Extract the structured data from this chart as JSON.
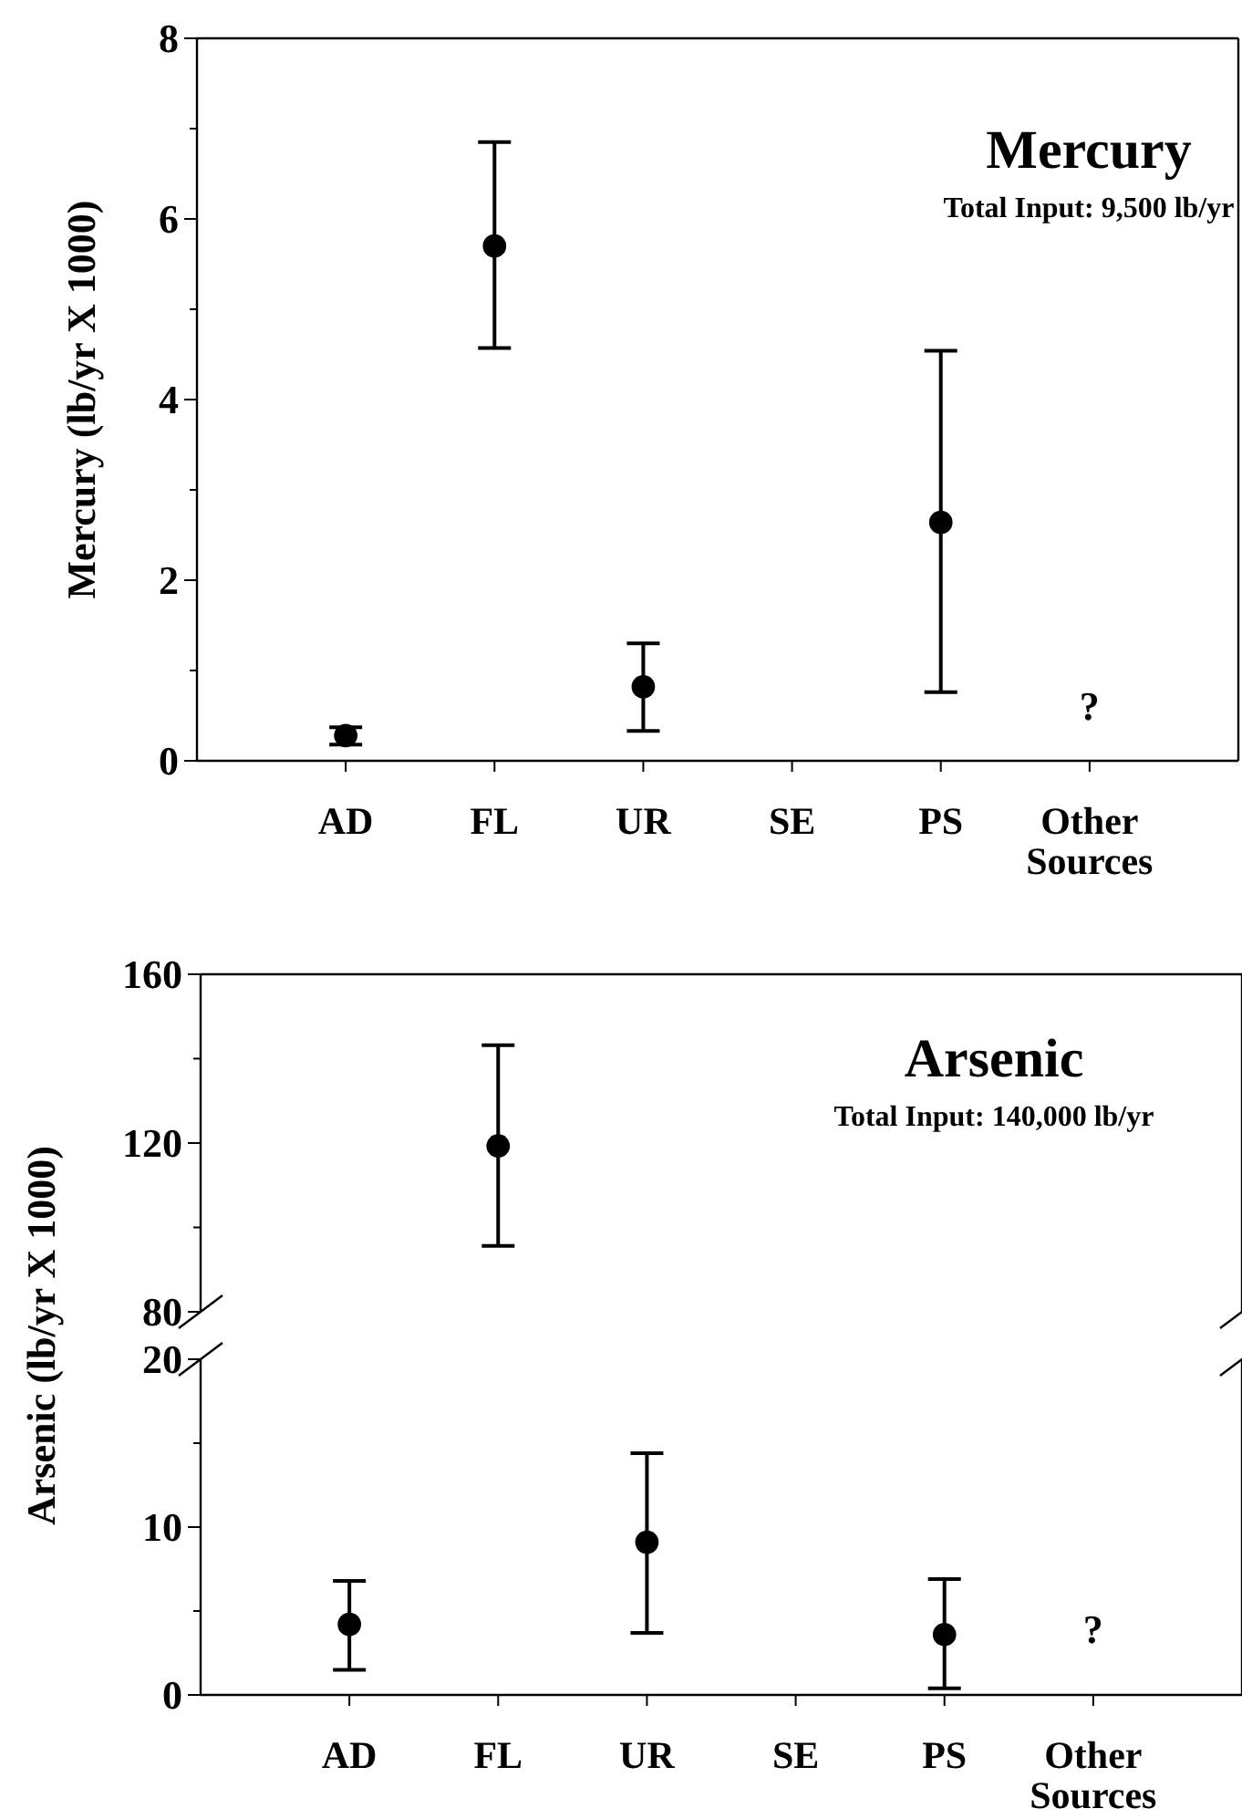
{
  "chart_data": [
    {
      "type": "scatter",
      "title": "Mercury",
      "subtitle": "Total Input: 9,500 lb/yr",
      "ylabel": "Mercury (lb/yr X 1000)",
      "categories": [
        "AD",
        "FL",
        "UR",
        "SE",
        "PS",
        "Other Sources"
      ],
      "series": [
        {
          "color": "#000000",
          "values": [
            0.28,
            5.7,
            0.82,
            null,
            2.64,
            null
          ],
          "errors": [
            [
              0.18,
              0.37
            ],
            [
              4.57,
              6.85
            ],
            [
              0.33,
              1.3
            ],
            null,
            [
              0.76,
              4.54
            ],
            null
          ]
        }
      ],
      "ylim": [
        0,
        8
      ],
      "yticks": [
        0,
        {
          "value": 1,
          "label": null
        },
        2,
        {
          "value": 3,
          "label": null
        },
        4,
        {
          "value": 5,
          "label": null
        },
        6,
        {
          "value": 7,
          "label": null
        },
        8
      ],
      "marker": "circle",
      "annotations": [
        "?"
      ]
    },
    {
      "type": "scatter",
      "title": "Arsenic",
      "subtitle": "Total Input: 140,000 lb/yr",
      "ylabel": "Arsenic (lb/yr X 1000)",
      "categories": [
        null,
        null,
        null,
        null,
        null,
        null
      ],
      "series": [
        {
          "color": "#000000",
          "values": [
            null,
            119.3,
            null,
            null,
            null,
            null
          ],
          "errors": [
            null,
            [
              95.6,
              143.2
            ],
            null,
            null,
            null,
            null
          ]
        }
      ],
      "ylim": [
        80,
        160
      ],
      "yticks": [
        80,
        {
          "value": 100,
          "label": null
        },
        120,
        {
          "value": 140,
          "label": null
        },
        160
      ],
      "marker": "circle",
      "tick_labels": "y"
    },
    {
      "type": "scatter",
      "categories": [
        "AD",
        "FL",
        "UR",
        "SE",
        "PS",
        "Other Sources"
      ],
      "series": [
        {
          "color": "#000000",
          "values": [
            4.2,
            null,
            9.1,
            null,
            3.6,
            null
          ],
          "errors": [
            [
              1.5,
              6.8
            ],
            null,
            [
              3.7,
              14.4
            ],
            null,
            [
              0.4,
              6.9
            ],
            null
          ]
        }
      ],
      "ylim": [
        0,
        20
      ],
      "yticks": [
        0,
        {
          "value": 5,
          "label": null
        },
        10,
        {
          "value": 15,
          "label": null
        },
        20
      ],
      "marker": "circle",
      "annotations": [
        "?"
      ]
    }
  ]
}
